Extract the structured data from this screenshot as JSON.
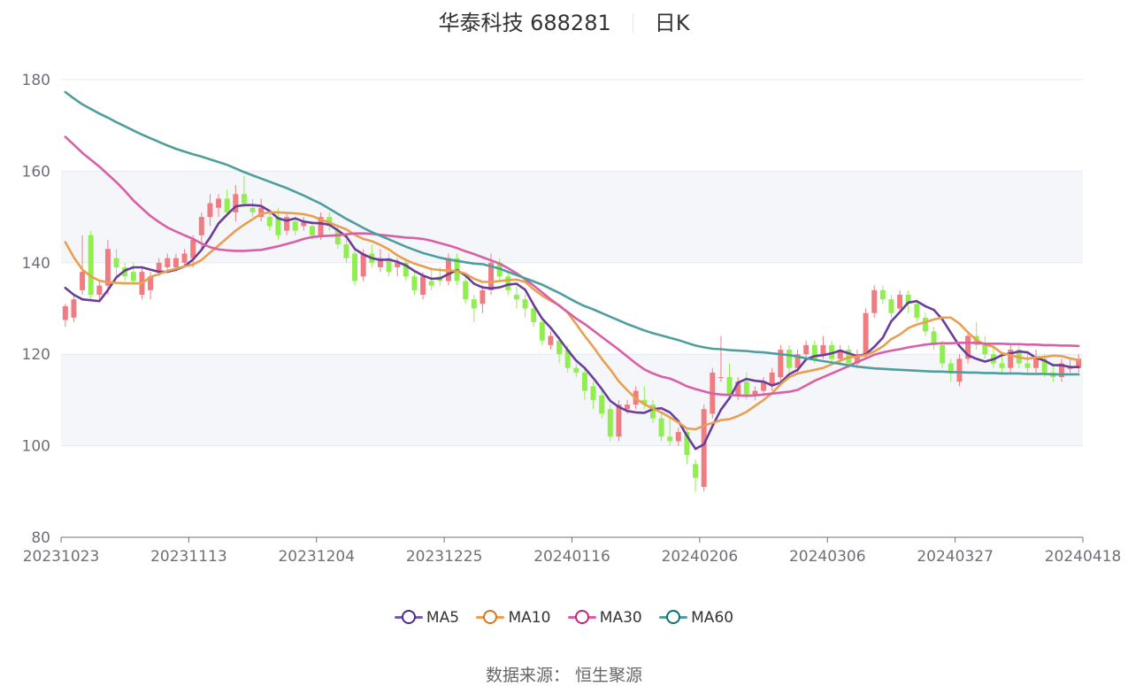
{
  "header": {
    "name": "华泰科技 688281",
    "period": "日K"
  },
  "source": "数据来源： 恒生聚源",
  "colors": {
    "up": "#f07c82",
    "down": "#90ee4f",
    "grid": "#e6e8f2",
    "band": "#f5f6fa",
    "axis": "#6e7079"
  },
  "chart_data": {
    "type": "candlestick",
    "ylim": [
      80,
      180
    ],
    "yticks": [
      80,
      100,
      120,
      140,
      160,
      180
    ],
    "xticks": [
      {
        "label": "20231023",
        "index": 0
      },
      {
        "label": "20231113",
        "index": 15
      },
      {
        "label": "20231204",
        "index": 30
      },
      {
        "label": "20231225",
        "index": 45
      },
      {
        "label": "20240116",
        "index": 60
      },
      {
        "label": "20240206",
        "index": 75
      },
      {
        "label": "20240306",
        "index": 90
      },
      {
        "label": "20240327",
        "index": 105
      },
      {
        "label": "20240418",
        "index": 119
      }
    ],
    "candles": [
      [
        127.5,
        130.5,
        126,
        131
      ],
      [
        128,
        132,
        127,
        133
      ],
      [
        134,
        138,
        133,
        146
      ],
      [
        146,
        133,
        132,
        147
      ],
      [
        133,
        135,
        132,
        136
      ],
      [
        135,
        143,
        133,
        145
      ],
      [
        141,
        139,
        137,
        143
      ],
      [
        139,
        137,
        136,
        140
      ],
      [
        138,
        136,
        135,
        140
      ],
      [
        133,
        138,
        132,
        139
      ],
      [
        134,
        137,
        132,
        138
      ],
      [
        138,
        140,
        137,
        141
      ],
      [
        139,
        141,
        138,
        142
      ],
      [
        139,
        141,
        138,
        142
      ],
      [
        140,
        142,
        139,
        143
      ],
      [
        141,
        145,
        139,
        146
      ],
      [
        146,
        150,
        143,
        151
      ],
      [
        150,
        153,
        148,
        155
      ],
      [
        152,
        154,
        150,
        155
      ],
      [
        154,
        151,
        150,
        156
      ],
      [
        151,
        155,
        149,
        157
      ],
      [
        155,
        153,
        152,
        159
      ],
      [
        152,
        151,
        150,
        154
      ],
      [
        150,
        152,
        149,
        154
      ],
      [
        150,
        148,
        147,
        151
      ],
      [
        150,
        146,
        145,
        152
      ],
      [
        147,
        150,
        146,
        151
      ],
      [
        149,
        147,
        146,
        150
      ],
      [
        148,
        149,
        147,
        150
      ],
      [
        148,
        146,
        145,
        149
      ],
      [
        146,
        150,
        145,
        151
      ],
      [
        150,
        148,
        147,
        151
      ],
      [
        147,
        144,
        143,
        148
      ],
      [
        144,
        141,
        140,
        145
      ],
      [
        142,
        136,
        135,
        143
      ],
      [
        137,
        142,
        136,
        143
      ],
      [
        142,
        140,
        139,
        144
      ],
      [
        139,
        141,
        138,
        143
      ],
      [
        141,
        138,
        137,
        142
      ],
      [
        139,
        140,
        137,
        141
      ],
      [
        140,
        137,
        136,
        141
      ],
      [
        137,
        134,
        133,
        138
      ],
      [
        133,
        137,
        132,
        138
      ],
      [
        136,
        135,
        134,
        139
      ],
      [
        137,
        136,
        135,
        139
      ],
      [
        136,
        141,
        135,
        142
      ],
      [
        141,
        136,
        135,
        142
      ],
      [
        136,
        132,
        131,
        137
      ],
      [
        132,
        130,
        127,
        133
      ],
      [
        131,
        134,
        129,
        135
      ],
      [
        134,
        140,
        133,
        142
      ],
      [
        140,
        137,
        136,
        141
      ],
      [
        137,
        134,
        133,
        138
      ],
      [
        133,
        132,
        130,
        135
      ],
      [
        132,
        130,
        128,
        133
      ],
      [
        130,
        127,
        126,
        131
      ],
      [
        127,
        123,
        122,
        128
      ],
      [
        122,
        124,
        121,
        125
      ],
      [
        123,
        120,
        118,
        124
      ],
      [
        121,
        117,
        116,
        122
      ],
      [
        117,
        116,
        115,
        118
      ],
      [
        116,
        112,
        110,
        117
      ],
      [
        113,
        110,
        108,
        114
      ],
      [
        111,
        107,
        106,
        112
      ],
      [
        108,
        102,
        101,
        109
      ],
      [
        102,
        109,
        101,
        110
      ],
      [
        108,
        109,
        107,
        110
      ],
      [
        109,
        112,
        108,
        113
      ],
      [
        110,
        109,
        108,
        113
      ],
      [
        109,
        106,
        105,
        110
      ],
      [
        106,
        102,
        101,
        107
      ],
      [
        102,
        101,
        100,
        106
      ],
      [
        101,
        103,
        100,
        104
      ],
      [
        103,
        98,
        96,
        104
      ],
      [
        96,
        93,
        90,
        97
      ],
      [
        91,
        108,
        90,
        109
      ],
      [
        107,
        116,
        106,
        117
      ],
      [
        115,
        115,
        114,
        124
      ],
      [
        115,
        111,
        110,
        118
      ],
      [
        111,
        114,
        110,
        115
      ],
      [
        114,
        111,
        110,
        116
      ],
      [
        111,
        112,
        110,
        113
      ],
      [
        112,
        114,
        111,
        115
      ],
      [
        113,
        116,
        112,
        117
      ],
      [
        115,
        121,
        114,
        122
      ],
      [
        121,
        117,
        116,
        122
      ],
      [
        117,
        120,
        116,
        121
      ],
      [
        120,
        122,
        119,
        123
      ],
      [
        122,
        119,
        118,
        123
      ],
      [
        120,
        122,
        119,
        124
      ],
      [
        122,
        119,
        118,
        123
      ],
      [
        119,
        121,
        118,
        122
      ],
      [
        121,
        118,
        117,
        122
      ],
      [
        118,
        120,
        117,
        121
      ],
      [
        120,
        129,
        119,
        130
      ],
      [
        129,
        134,
        128,
        135
      ],
      [
        134,
        132,
        131,
        135
      ],
      [
        132,
        129,
        128,
        133
      ],
      [
        130,
        133,
        129,
        134
      ],
      [
        133,
        131,
        129,
        134
      ],
      [
        131,
        128,
        127,
        132
      ],
      [
        128,
        125,
        124,
        129
      ],
      [
        125,
        122,
        121,
        126
      ],
      [
        122,
        118,
        117,
        123
      ],
      [
        118,
        116,
        114,
        119
      ],
      [
        114,
        119,
        113,
        120
      ],
      [
        119,
        124,
        118,
        125
      ],
      [
        124,
        122,
        121,
        127
      ],
      [
        122,
        120,
        119,
        124
      ],
      [
        120,
        118,
        117,
        122
      ],
      [
        118,
        117,
        116,
        120
      ],
      [
        117,
        121,
        116,
        122
      ],
      [
        121,
        118,
        117,
        122
      ],
      [
        118,
        117,
        116,
        120
      ],
      [
        117,
        119,
        116,
        121
      ],
      [
        119,
        116,
        115,
        120
      ],
      [
        116,
        115,
        114,
        118
      ],
      [
        115,
        118,
        114,
        119
      ],
      [
        117,
        117,
        116,
        119
      ],
      [
        117,
        119,
        116,
        120
      ]
    ],
    "series": [
      {
        "name": "MA5",
        "color": "#6a3d9a",
        "values": [
          134.5,
          133,
          132,
          131.8,
          131.6,
          134,
          136.8,
          138.3,
          139,
          139,
          138.5,
          138,
          138,
          138.5,
          139.2,
          140.7,
          142.8,
          145.5,
          148.6,
          150.5,
          152.3,
          152.6,
          152.6,
          152.4,
          151.3,
          149.7,
          149.2,
          149.7,
          149,
          148.7,
          148.6,
          148.3,
          147.1,
          145.7,
          143,
          141.8,
          141,
          140.6,
          140.7,
          140.2,
          139.4,
          138.2,
          137.2,
          136.5,
          136.6,
          137.5,
          138.4,
          137.2,
          135.4,
          134.6,
          134.4,
          134.6,
          135.2,
          135.4,
          134.1,
          130.8,
          127.8,
          125.8,
          123.4,
          120.9,
          118.6,
          117,
          114.8,
          112.4,
          109.8,
          108.5,
          107.6,
          107.3,
          107.2,
          108,
          108.2,
          107.3,
          105.4,
          102.2,
          99.3,
          100.3,
          104.3,
          107.9,
          110.4,
          113.8,
          114.6,
          114.2,
          114,
          113.2,
          113.8,
          115.6,
          116.6,
          118.9,
          119.6,
          119.8,
          120.2,
          120.8,
          120.2,
          119.6,
          120,
          121.6,
          123.6,
          127.2,
          129.2,
          131.3,
          131.6,
          130.5,
          129.7,
          127.6,
          124.7,
          121.8,
          119.8,
          119,
          118.4,
          118.9,
          119.8,
          120.2,
          120.6,
          120.4,
          119.2,
          118.6,
          117.6,
          117.6,
          117.2,
          117.2
        ]
      },
      {
        "name": "MA10",
        "color": "#e8a050",
        "values": [
          144.5,
          141.2,
          138.5,
          137,
          136.1,
          135.7,
          135.6,
          135.5,
          135.5,
          135.5,
          136.9,
          137.5,
          138.2,
          138.7,
          139.2,
          139.6,
          140.6,
          142.2,
          143.8,
          145.4,
          147,
          148.3,
          149.5,
          150.7,
          151,
          151,
          150.9,
          150.8,
          150.6,
          150.2,
          149.4,
          148.8,
          148,
          147.3,
          146.1,
          145.2,
          144.7,
          143.9,
          142.9,
          141.6,
          140.6,
          139.8,
          139.2,
          138.6,
          138.4,
          138.3,
          138.2,
          137.6,
          136.5,
          135.8,
          135.8,
          136,
          136.2,
          136.3,
          135.8,
          134.2,
          132.8,
          131.7,
          130.7,
          129.1,
          126.6,
          124,
          121.6,
          119,
          116.7,
          114.1,
          112.1,
          110.3,
          109.1,
          108.1,
          107.3,
          106.2,
          105.1,
          103.8,
          103.6,
          104.4,
          105,
          105.6,
          105.8,
          106.5,
          107.4,
          108.7,
          110,
          111.5,
          113.4,
          115,
          115.8,
          116.2,
          116.6,
          117,
          117.8,
          118.6,
          119.3,
          119.5,
          119.8,
          120.6,
          121.7,
          123.3,
          124.3,
          125.7,
          126.5,
          127,
          127.6,
          128,
          128,
          126.7,
          124.8,
          123.1,
          122.1,
          121.6,
          120.2,
          119.8,
          119.3,
          119,
          119.3,
          119.4,
          119.7,
          119.6,
          119.1,
          118.7
        ]
      },
      {
        "name": "MA30",
        "color": "#d95fa8",
        "values": [
          167.5,
          165.8,
          164,
          162.5,
          161,
          159.3,
          157.6,
          155.7,
          153.6,
          151.9,
          150.2,
          148.9,
          147.7,
          146.8,
          146,
          145.2,
          144.2,
          143.4,
          142.9,
          142.7,
          142.6,
          142.6,
          142.7,
          142.8,
          143.2,
          143.6,
          144.1,
          144.6,
          145.2,
          145.6,
          145.8,
          145.9,
          146,
          146.2,
          146.4,
          146.4,
          146.3,
          146.1,
          145.9,
          145.7,
          145.5,
          145.4,
          145.2,
          144.8,
          144.3,
          143.8,
          143.2,
          142.5,
          141.9,
          141.2,
          140.5,
          139.8,
          138.8,
          137.7,
          136.4,
          135,
          133.5,
          132,
          130.6,
          129.2,
          127.8,
          126.6,
          125.2,
          123.8,
          122.4,
          121,
          119.5,
          118,
          116.7,
          115.8,
          115.1,
          114.7,
          113.9,
          113,
          112.4,
          111.9,
          111.4,
          111.2,
          111.1,
          111,
          110.9,
          111,
          111.2,
          111.4,
          111.6,
          111.8,
          112.2,
          113.2,
          114.2,
          115,
          115.8,
          116.6,
          117.4,
          118.3,
          119.1,
          119.9,
          120.4,
          120.8,
          121.1,
          121.5,
          121.8,
          122.1,
          122.3,
          122.4,
          122.4,
          122.5,
          122.5,
          122.5,
          122.3,
          122.3,
          122.3,
          122.2,
          122.2,
          122.1,
          122.1,
          122,
          122,
          121.9,
          121.9,
          121.8
        ]
      },
      {
        "name": "MA60",
        "color": "#4f9e9e",
        "values": [
          177.3,
          175.9,
          174.6,
          173.6,
          172.6,
          171.7,
          170.7,
          169.8,
          168.9,
          168,
          167.2,
          166.4,
          165.6,
          164.9,
          164.3,
          163.7,
          163.2,
          162.6,
          162,
          161.4,
          160.6,
          159.8,
          159.1,
          158.4,
          157.7,
          157,
          156.3,
          155.5,
          154.7,
          153.8,
          152.9,
          151.8,
          150.7,
          149.6,
          148.6,
          147.6,
          146.7,
          145.9,
          145.1,
          144.3,
          143.5,
          142.8,
          142.1,
          141.6,
          141.1,
          140.7,
          140.4,
          140.1,
          139.8,
          139.7,
          139.2,
          138.7,
          138,
          137.3,
          136.6,
          135.9,
          135.2,
          134.3,
          133.4,
          132.4,
          131.4,
          130.5,
          129.8,
          129,
          128.2,
          127.4,
          126.6,
          125.9,
          125.2,
          124.6,
          124.1,
          123.6,
          123.1,
          122.5,
          121.9,
          121.5,
          121.2,
          121.1,
          120.9,
          120.8,
          120.7,
          120.5,
          120.4,
          120.2,
          120,
          119.8,
          119.5,
          119.1,
          118.8,
          118.5,
          118.2,
          117.9,
          117.6,
          117.3,
          117.1,
          116.9,
          116.8,
          116.7,
          116.6,
          116.5,
          116.4,
          116.3,
          116.2,
          116.2,
          116.1,
          116.1,
          116,
          116,
          115.9,
          115.9,
          115.8,
          115.8,
          115.8,
          115.7,
          115.7,
          115.7,
          115.6,
          115.6,
          115.6,
          115.6
        ]
      }
    ]
  }
}
